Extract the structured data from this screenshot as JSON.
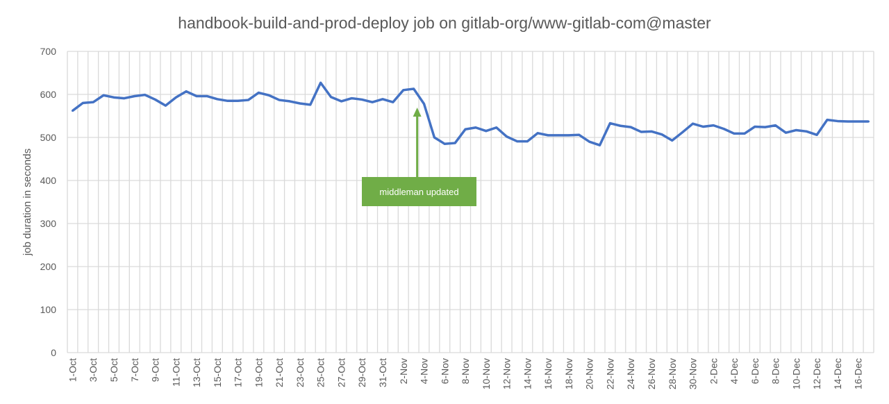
{
  "chart_data": {
    "type": "line",
    "title": "handbook-build-and-prod-deploy job on gitlab-org/www-gitlab-com@master",
    "xlabel": "",
    "ylabel": "job duration in seconds",
    "ylim": [
      0,
      700
    ],
    "yticks": [
      0,
      100,
      200,
      300,
      400,
      500,
      600,
      700
    ],
    "grid": true,
    "line_color": "#4472c4",
    "categories": [
      "1-Oct",
      "2-Oct",
      "3-Oct",
      "4-Oct",
      "5-Oct",
      "6-Oct",
      "7-Oct",
      "8-Oct",
      "9-Oct",
      "10-Oct",
      "11-Oct",
      "12-Oct",
      "13-Oct",
      "14-Oct",
      "15-Oct",
      "16-Oct",
      "17-Oct",
      "18-Oct",
      "19-Oct",
      "20-Oct",
      "21-Oct",
      "22-Oct",
      "23-Oct",
      "24-Oct",
      "25-Oct",
      "26-Oct",
      "27-Oct",
      "28-Oct",
      "29-Oct",
      "30-Oct",
      "31-Oct",
      "1-Nov",
      "2-Nov",
      "3-Nov",
      "4-Nov",
      "5-Nov",
      "6-Nov",
      "7-Nov",
      "8-Nov",
      "9-Nov",
      "10-Nov",
      "11-Nov",
      "12-Nov",
      "13-Nov",
      "14-Nov",
      "15-Nov",
      "16-Nov",
      "17-Nov",
      "18-Nov",
      "19-Nov",
      "20-Nov",
      "21-Nov",
      "22-Nov",
      "23-Nov",
      "24-Nov",
      "25-Nov",
      "26-Nov",
      "27-Nov",
      "28-Nov",
      "29-Nov",
      "30-Nov",
      "1-Dec",
      "2-Dec",
      "3-Dec",
      "4-Dec",
      "5-Dec",
      "6-Dec",
      "7-Dec",
      "8-Dec",
      "9-Dec",
      "10-Dec",
      "11-Dec",
      "12-Dec",
      "13-Dec",
      "14-Dec",
      "15-Dec",
      "16-Dec",
      "17-Dec"
    ],
    "values": [
      562,
      580,
      582,
      598,
      593,
      591,
      596,
      599,
      588,
      574,
      593,
      607,
      596,
      596,
      589,
      585,
      585,
      587,
      604,
      598,
      587,
      584,
      579,
      576,
      627,
      594,
      584,
      591,
      588,
      582,
      589,
      582,
      610,
      613,
      578,
      500,
      485,
      487,
      519,
      523,
      515,
      523,
      502,
      491,
      491,
      510,
      505,
      505,
      505,
      506,
      490,
      482,
      533,
      527,
      524,
      513,
      514,
      507,
      493,
      512,
      532,
      525,
      528,
      520,
      509,
      509,
      525,
      524,
      528,
      511,
      517,
      514,
      506,
      541,
      538,
      537,
      537,
      537
    ],
    "annotation": {
      "text": "middleman updated",
      "category": "3-Nov",
      "color": "#70ad47"
    }
  }
}
